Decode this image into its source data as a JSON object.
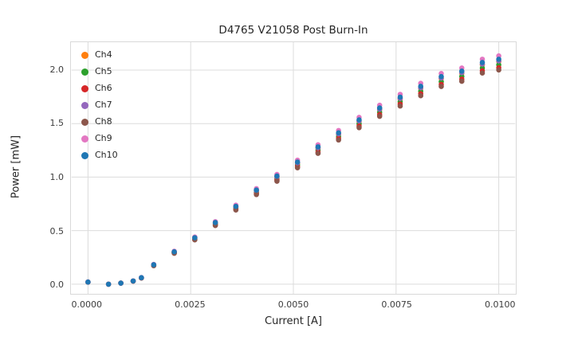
{
  "chart_data": {
    "type": "scatter",
    "title": "D4765 V21058 Post Burn-In",
    "xlabel": "Current [A]",
    "ylabel": "Power [mW]",
    "xlim": [
      -0.0004,
      0.0104
    ],
    "ylim": [
      -0.09,
      2.26
    ],
    "grid": true,
    "grid_color": "#dcdcdc",
    "legend_position": "upper left",
    "xticks": [
      {
        "value": 0.0,
        "label": "0.0000"
      },
      {
        "value": 0.0025,
        "label": "0.0025"
      },
      {
        "value": 0.005,
        "label": "0.0050"
      },
      {
        "value": 0.0075,
        "label": "0.0075"
      },
      {
        "value": 0.01,
        "label": "0.0100"
      }
    ],
    "yticks": [
      {
        "value": 0.0,
        "label": "0.0"
      },
      {
        "value": 0.5,
        "label": "0.5"
      },
      {
        "value": 1.0,
        "label": "1.0"
      },
      {
        "value": 1.5,
        "label": "1.5"
      },
      {
        "value": 2.0,
        "label": "2.0"
      }
    ],
    "x": [
      0.0,
      0.0005,
      0.0008,
      0.0011,
      0.0013,
      0.0016,
      0.0021,
      0.0026,
      0.0031,
      0.0036,
      0.0041,
      0.0046,
      0.0051,
      0.0056,
      0.0061,
      0.0066,
      0.0071,
      0.0076,
      0.0081,
      0.0086,
      0.0091,
      0.0096,
      0.01
    ],
    "series": [
      {
        "name": "Ch4",
        "color": "#ff7f0e",
        "values": [
          0.02,
          0.0,
          0.01,
          0.03,
          0.06,
          0.18,
          0.3,
          0.43,
          0.57,
          0.72,
          0.87,
          1.0,
          1.13,
          1.27,
          1.4,
          1.52,
          1.63,
          1.73,
          1.83,
          1.92,
          1.97,
          2.05,
          2.08
        ]
      },
      {
        "name": "Ch5",
        "color": "#2ca02c",
        "values": [
          0.02,
          0.0,
          0.01,
          0.03,
          0.059,
          0.177,
          0.296,
          0.424,
          0.561,
          0.709,
          0.857,
          0.985,
          1.113,
          1.251,
          1.379,
          1.497,
          1.606,
          1.704,
          1.803,
          1.891,
          1.94,
          2.019,
          2.049
        ]
      },
      {
        "name": "Ch6",
        "color": "#d62728",
        "values": [
          0.019,
          0.0,
          0.01,
          0.029,
          0.058,
          0.175,
          0.292,
          0.418,
          0.554,
          0.7,
          0.846,
          0.972,
          1.098,
          1.234,
          1.361,
          1.477,
          1.584,
          1.682,
          1.779,
          1.866,
          1.915,
          1.993,
          2.022
        ]
      },
      {
        "name": "Ch7",
        "color": "#9467bd",
        "values": [
          0.02,
          0.0,
          0.01,
          0.03,
          0.06,
          0.181,
          0.301,
          0.431,
          0.572,
          0.722,
          0.873,
          1.003,
          1.133,
          1.274,
          1.404,
          1.525,
          1.635,
          1.735,
          1.835,
          1.926,
          1.976,
          2.056,
          2.086
        ]
      },
      {
        "name": "Ch8",
        "color": "#8c564b",
        "values": [
          0.019,
          0.0,
          0.01,
          0.029,
          0.058,
          0.173,
          0.289,
          0.414,
          0.548,
          0.693,
          0.837,
          0.962,
          1.087,
          1.222,
          1.347,
          1.462,
          1.568,
          1.664,
          1.76,
          1.847,
          1.895,
          1.972,
          2.001
        ]
      },
      {
        "name": "Ch9",
        "color": "#e377c2",
        "values": [
          0.021,
          0.0,
          0.01,
          0.031,
          0.062,
          0.185,
          0.308,
          0.441,
          0.584,
          0.738,
          0.892,
          1.025,
          1.158,
          1.302,
          1.435,
          1.558,
          1.671,
          1.773,
          1.876,
          1.968,
          2.019,
          2.101,
          2.132
        ]
      },
      {
        "name": "Ch10",
        "color": "#1f77b4",
        "values": [
          0.02,
          0.0,
          0.01,
          0.03,
          0.061,
          0.182,
          0.303,
          0.434,
          0.576,
          0.727,
          0.879,
          1.01,
          1.141,
          1.283,
          1.414,
          1.535,
          1.646,
          1.747,
          1.848,
          1.939,
          1.99,
          2.071,
          2.101
        ]
      }
    ]
  }
}
